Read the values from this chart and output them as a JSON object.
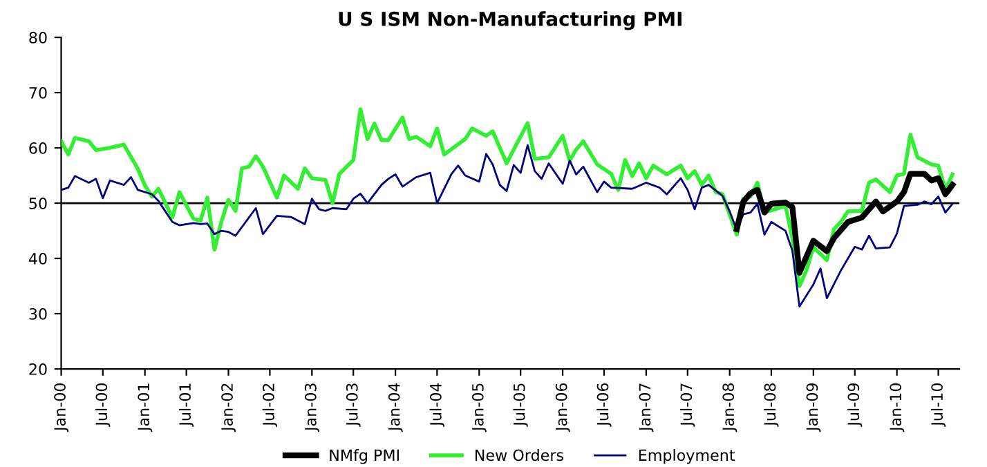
{
  "chart_data": {
    "type": "line",
    "title": "U S ISM Non-Manufacturing PMI",
    "xlim": [
      "2000-01",
      "2010-10"
    ],
    "xticks": [
      {
        "value": "2000-01",
        "label": "Jan-00"
      },
      {
        "value": "2000-07",
        "label": "Jul-00"
      },
      {
        "value": "2001-01",
        "label": "Jan-01"
      },
      {
        "value": "2001-07",
        "label": "Jul-01"
      },
      {
        "value": "2002-01",
        "label": "Jan-02"
      },
      {
        "value": "2002-07",
        "label": "Jul-02"
      },
      {
        "value": "2003-01",
        "label": "Jan-03"
      },
      {
        "value": "2003-07",
        "label": "Jul-03"
      },
      {
        "value": "2004-01",
        "label": "Jan-04"
      },
      {
        "value": "2004-07",
        "label": "Jul-04"
      },
      {
        "value": "2005-01",
        "label": "Jan-05"
      },
      {
        "value": "2005-07",
        "label": "Jul-05"
      },
      {
        "value": "2006-01",
        "label": "Jan-06"
      },
      {
        "value": "2006-07",
        "label": "Jul-06"
      },
      {
        "value": "2007-01",
        "label": "Jan-07"
      },
      {
        "value": "2007-07",
        "label": "Jul-07"
      },
      {
        "value": "2008-01",
        "label": "Jan-08"
      },
      {
        "value": "2008-07",
        "label": "Jul-08"
      },
      {
        "value": "2009-01",
        "label": "Jan-09"
      },
      {
        "value": "2009-07",
        "label": "Jul-09"
      },
      {
        "value": "2010-01",
        "label": "Jan-10"
      },
      {
        "value": "2010-07",
        "label": "Jul-10"
      }
    ],
    "ylim": [
      20,
      80
    ],
    "yticks": [
      20,
      30,
      40,
      50,
      60,
      70,
      80
    ],
    "grid": false,
    "legend": "bottom",
    "marker": "none",
    "ref_lines": [
      {
        "axis": "y",
        "value": 50,
        "color": "#000000"
      }
    ],
    "series": [
      {
        "name": "NMfg PMI",
        "color": "#000000",
        "x": [
          "2008-02",
          "2008-03",
          "2008-04",
          "2008-05",
          "2008-06",
          "2008-07",
          "2008-09",
          "2008-10",
          "2008-11",
          "2009-01",
          "2009-03",
          "2009-04",
          "2009-06",
          "2009-08",
          "2009-10",
          "2009-11",
          "2010-01",
          "2010-02",
          "2010-03",
          "2010-05",
          "2010-06",
          "2010-07",
          "2010-08",
          "2010-09"
        ],
        "values": [
          45.3,
          50.3,
          51.8,
          52.4,
          48.3,
          49.9,
          50.1,
          49.3,
          37.4,
          43.2,
          41.3,
          43.7,
          46.6,
          47.4,
          50.3,
          48.5,
          50.3,
          52,
          55.3,
          55.3,
          54.1,
          54.5,
          51.6,
          53.3
        ]
      },
      {
        "name": "New Orders",
        "color": "#33ee33",
        "x": [
          "2000-01",
          "2000-02",
          "2000-03",
          "2000-05",
          "2000-06",
          "2000-08",
          "2000-10",
          "2000-12",
          "2001-01",
          "2001-02",
          "2001-03",
          "2001-05",
          "2001-06",
          "2001-08",
          "2001-09",
          "2001-10",
          "2001-11",
          "2001-12",
          "2002-01",
          "2002-02",
          "2002-03",
          "2002-04",
          "2002-05",
          "2002-06",
          "2002-08",
          "2002-09",
          "2002-11",
          "2002-12",
          "2003-01",
          "2003-03",
          "2003-04",
          "2003-05",
          "2003-07",
          "2003-08",
          "2003-09",
          "2003-10",
          "2003-11",
          "2003-12",
          "2004-02",
          "2004-03",
          "2004-04",
          "2004-06",
          "2004-07",
          "2004-08",
          "2004-11",
          "2004-12",
          "2005-02",
          "2005-03",
          "2005-05",
          "2005-06",
          "2005-08",
          "2005-09",
          "2005-11",
          "2006-01",
          "2006-02",
          "2006-03",
          "2006-04",
          "2006-06",
          "2006-08",
          "2006-09",
          "2006-10",
          "2006-11",
          "2006-12",
          "2007-01",
          "2007-02",
          "2007-04",
          "2007-06",
          "2007-07",
          "2007-08",
          "2007-09",
          "2007-10",
          "2007-11",
          "2007-12",
          "2008-02",
          "2008-03",
          "2008-04",
          "2008-05",
          "2008-06",
          "2008-08",
          "2008-09",
          "2008-10",
          "2008-11",
          "2008-12",
          "2009-01",
          "2009-03",
          "2009-04",
          "2009-05",
          "2009-06",
          "2009-08",
          "2009-09",
          "2009-10",
          "2009-12",
          "2010-01",
          "2010-02",
          "2010-03",
          "2010-04",
          "2010-06",
          "2010-07",
          "2010-08",
          "2010-09"
        ],
        "values": [
          61.2,
          58.8,
          61.8,
          61.2,
          59.6,
          60,
          60.6,
          56.2,
          53.2,
          51.2,
          52.6,
          47.4,
          52,
          47.2,
          46.8,
          51,
          41.6,
          46.6,
          50.6,
          48.6,
          56.3,
          56.6,
          58.5,
          56.6,
          51,
          55,
          52.6,
          56.3,
          54.5,
          54.2,
          50,
          55.3,
          57.8,
          67,
          61.6,
          64.4,
          61.4,
          61.4,
          65.5,
          61.6,
          62,
          60.3,
          63.5,
          58.8,
          61.6,
          63.5,
          62.2,
          63,
          57.2,
          59.7,
          64.5,
          58,
          58.3,
          62.2,
          57.7,
          59.7,
          61.2,
          57,
          55.3,
          52.4,
          57.8,
          54.9,
          57.2,
          54.5,
          56.8,
          55.2,
          56.8,
          54.5,
          55.8,
          53.3,
          55,
          52,
          51.6,
          44.3,
          50.8,
          51.2,
          53.7,
          48.3,
          49.1,
          49.5,
          43.7,
          35,
          37.8,
          42,
          39.7,
          45.3,
          46.6,
          48.5,
          48.6,
          53.7,
          54.3,
          52,
          55,
          55.3,
          62.4,
          58.3,
          57,
          56.8,
          52.4,
          55.2
        ]
      },
      {
        "name": "Employment",
        "color": "#000080",
        "x": [
          "2000-01",
          "2000-02",
          "2000-03",
          "2000-05",
          "2000-06",
          "2000-07",
          "2000-08",
          "2000-10",
          "2000-11",
          "2000-12",
          "2001-02",
          "2001-03",
          "2001-05",
          "2001-06",
          "2001-08",
          "2001-09",
          "2001-10",
          "2001-11",
          "2001-12",
          "2002-01",
          "2002-02",
          "2002-05",
          "2002-06",
          "2002-08",
          "2002-10",
          "2002-12",
          "2003-01",
          "2003-02",
          "2003-03",
          "2003-04",
          "2003-06",
          "2003-07",
          "2003-08",
          "2003-09",
          "2003-11",
          "2003-12",
          "2004-01",
          "2004-02",
          "2004-04",
          "2004-06",
          "2004-07",
          "2004-09",
          "2004-10",
          "2004-11",
          "2005-01",
          "2005-02",
          "2005-03",
          "2005-04",
          "2005-05",
          "2005-06",
          "2005-07",
          "2005-08",
          "2005-09",
          "2005-10",
          "2005-11",
          "2006-01",
          "2006-02",
          "2006-03",
          "2006-04",
          "2006-06",
          "2006-07",
          "2006-08",
          "2006-11",
          "2007-01",
          "2007-03",
          "2007-04",
          "2007-06",
          "2007-07",
          "2007-08",
          "2007-09",
          "2007-10",
          "2007-12",
          "2008-01",
          "2008-02",
          "2008-03",
          "2008-04",
          "2008-05",
          "2008-06",
          "2008-07",
          "2008-09",
          "2008-10",
          "2008-11",
          "2009-01",
          "2009-02",
          "2009-03",
          "2009-05",
          "2009-07",
          "2009-08",
          "2009-09",
          "2009-10",
          "2009-12",
          "2010-01",
          "2010-02",
          "2010-04",
          "2010-05",
          "2010-06",
          "2010-07",
          "2010-08",
          "2010-09"
        ],
        "values": [
          52.4,
          52.8,
          54.9,
          53.7,
          54.4,
          50.9,
          54.1,
          53.3,
          54.7,
          52.4,
          51.6,
          50.4,
          46.6,
          46,
          46.4,
          46.2,
          46.3,
          44.4,
          45,
          44.8,
          44.1,
          49.1,
          44.4,
          47.7,
          47.5,
          46.2,
          50.8,
          48.9,
          48.6,
          49.1,
          48.9,
          50.8,
          51.7,
          50,
          53.3,
          54.4,
          55.2,
          53,
          54.7,
          55.5,
          50,
          55.2,
          56.8,
          55,
          53.9,
          58.9,
          57,
          53.3,
          52.2,
          56.9,
          55.5,
          60.5,
          55.8,
          54.4,
          57.2,
          53.5,
          57.7,
          55.2,
          56.6,
          52,
          53.9,
          52.8,
          52.6,
          53.7,
          52.8,
          51.6,
          54.5,
          52.4,
          48.9,
          52.8,
          53.3,
          51.3,
          48.5,
          45.1,
          48,
          48.3,
          49.9,
          44.3,
          46.6,
          45,
          41.4,
          31.3,
          35.3,
          38.2,
          32.8,
          37.8,
          42.1,
          41.6,
          44.1,
          41.8,
          42,
          44.5,
          49.5,
          49.7,
          50.3,
          49.8,
          51.2,
          48.3,
          49.9
        ]
      }
    ]
  }
}
